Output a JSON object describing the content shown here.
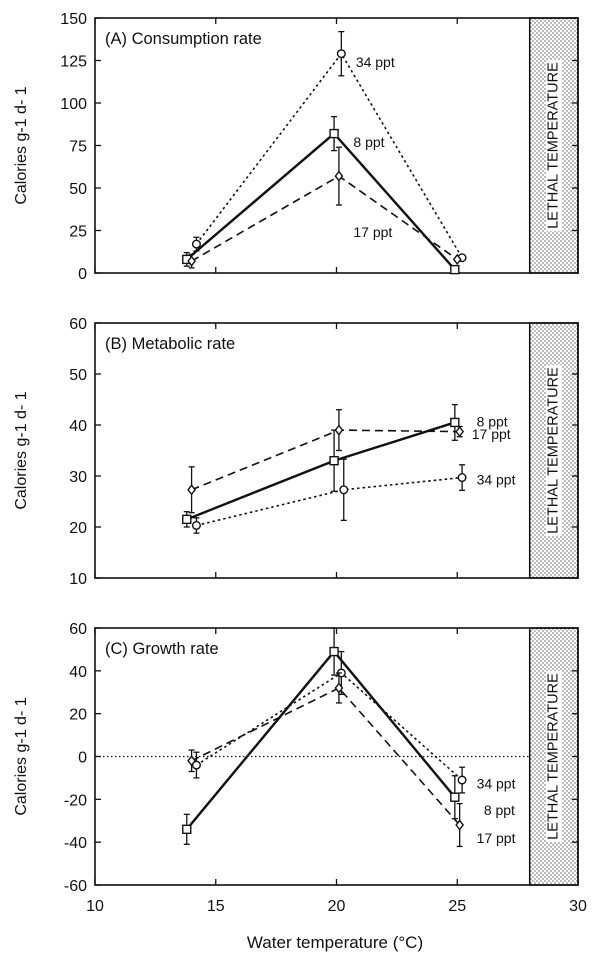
{
  "figure": {
    "xlabel": "Water temperature (°C)",
    "lethal_label": "LETHAL TEMPERATURE"
  },
  "chart_data": [
    {
      "type": "line",
      "title": "(A)  Consumption rate",
      "xlabel": "Water temperature (°C)",
      "ylabel": "Calories  g-1 d- 1",
      "xlim": [
        10,
        30
      ],
      "ylim": [
        0,
        150
      ],
      "yticks": [
        0,
        25,
        50,
        75,
        100,
        125,
        150
      ],
      "lethal_from": 28,
      "zero_line": false,
      "series": [
        {
          "name": "34 ppt",
          "style": "dotted",
          "marker": "circle",
          "x": [
            14.2,
            20.2,
            25.2
          ],
          "y": [
            17,
            129,
            9
          ],
          "err": [
            4,
            13,
            0
          ],
          "label_pos": [
            20.8,
            124
          ]
        },
        {
          "name": "8 ppt",
          "style": "solid",
          "marker": "square",
          "x": [
            13.8,
            19.9,
            24.9
          ],
          "y": [
            8,
            82,
            2
          ],
          "err": [
            4,
            10,
            0
          ],
          "label_pos": [
            20.7,
            77
          ]
        },
        {
          "name": "17 ppt",
          "style": "dashed",
          "marker": "diamond",
          "x": [
            14.0,
            20.1,
            25.0
          ],
          "y": [
            7,
            57,
            8
          ],
          "err": [
            4,
            17,
            0
          ],
          "label_pos": [
            20.7,
            24
          ]
        }
      ]
    },
    {
      "type": "line",
      "title": "(B)  Metabolic rate",
      "xlabel": "Water temperature (°C)",
      "ylabel": "Calories  g-1 d- 1",
      "xlim": [
        10,
        30
      ],
      "ylim": [
        10,
        60
      ],
      "yticks": [
        10,
        20,
        30,
        40,
        50,
        60
      ],
      "lethal_from": 28,
      "zero_line": false,
      "series": [
        {
          "name": "8 ppt",
          "style": "solid",
          "marker": "square",
          "x": [
            13.8,
            19.9,
            24.9
          ],
          "y": [
            21.5,
            33,
            40.5
          ],
          "err": [
            1.5,
            6,
            3.5
          ],
          "label_pos": [
            25.8,
            40.7
          ]
        },
        {
          "name": "17 ppt",
          "style": "dashed",
          "marker": "diamond",
          "x": [
            14.0,
            20.1,
            25.1
          ],
          "y": [
            27.3,
            39,
            38.7
          ],
          "err": [
            4.5,
            4,
            1
          ],
          "label_pos": [
            25.6,
            38.2
          ]
        },
        {
          "name": "34 ppt",
          "style": "dotted",
          "marker": "circle",
          "x": [
            14.2,
            20.3,
            25.2
          ],
          "y": [
            20.3,
            27.3,
            29.7
          ],
          "err": [
            1.5,
            6,
            2.5
          ],
          "label_pos": [
            25.8,
            29.3
          ]
        }
      ]
    },
    {
      "type": "line",
      "title": "(C)  Growth rate",
      "xlabel": "Water temperature (°C)",
      "ylabel": "Calories  g-1 d- 1",
      "xlim": [
        10,
        30
      ],
      "ylim": [
        -60,
        60
      ],
      "yticks": [
        -60,
        -40,
        -20,
        0,
        20,
        40,
        60
      ],
      "lethal_from": 28,
      "zero_line": true,
      "series": [
        {
          "name": "34 ppt",
          "style": "dotted",
          "marker": "circle",
          "x": [
            14.2,
            20.2,
            25.2
          ],
          "y": [
            -4,
            39,
            -11
          ],
          "err": [
            6,
            10,
            6
          ],
          "label_pos": [
            25.8,
            -12.5
          ]
        },
        {
          "name": "8 ppt",
          "style": "solid",
          "marker": "square",
          "x": [
            13.8,
            19.9,
            24.9
          ],
          "y": [
            -34,
            49,
            -19
          ],
          "err": [
            7,
            11,
            10
          ],
          "label_pos": [
            26.1,
            -25
          ]
        },
        {
          "name": "17 ppt",
          "style": "dashed",
          "marker": "diamond",
          "x": [
            14.0,
            20.1,
            25.1
          ],
          "y": [
            -2,
            32,
            -32
          ],
          "err": [
            5,
            7,
            10
          ],
          "label_pos": [
            25.8,
            -38
          ]
        }
      ]
    }
  ]
}
